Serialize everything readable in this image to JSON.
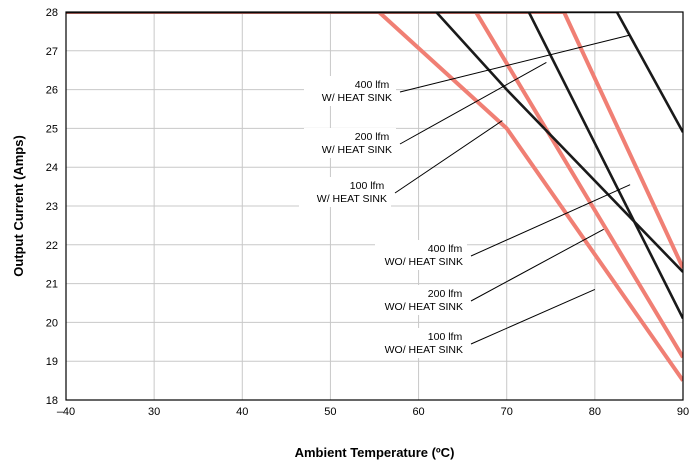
{
  "chart_data": {
    "type": "line",
    "xlabel": "Ambient Temperature (ºC)",
    "ylabel": "Output Current (Amps)",
    "x_ticks": [
      "–40",
      "30",
      "40",
      "50",
      "60",
      "70",
      "80",
      "90"
    ],
    "y_ticks": [
      "18",
      "19",
      "20",
      "21",
      "22",
      "23",
      "24",
      "25",
      "26",
      "27",
      "28"
    ],
    "x_ticks_numeric": [
      20,
      30,
      40,
      50,
      60,
      70,
      80,
      90
    ],
    "xlim": [
      20,
      90
    ],
    "ylim": [
      18,
      28
    ],
    "grid": true,
    "series": [
      {
        "name": "400 lfm W/ HEAT SINK",
        "color": "#1a1a1a",
        "x": [
          20,
          82.5,
          90
        ],
        "y": [
          28,
          28,
          24.9
        ]
      },
      {
        "name": "200 lfm W/ HEAT SINK",
        "color": "#1a1a1a",
        "x": [
          20,
          72.5,
          90
        ],
        "y": [
          28,
          28,
          20.1
        ]
      },
      {
        "name": "100 lfm W/ HEAT SINK",
        "color": "#1a1a1a",
        "x": [
          20,
          62,
          70,
          90
        ],
        "y": [
          28,
          28,
          26,
          21.3
        ]
      },
      {
        "name": "400 lfm WO/ HEAT SINK",
        "color": "#f07f74",
        "x": [
          20,
          76.5,
          90
        ],
        "y": [
          28,
          28,
          21.4
        ]
      },
      {
        "name": "200 lfm WO/ HEAT SINK",
        "color": "#f07f74",
        "x": [
          20,
          66.5,
          90
        ],
        "y": [
          28,
          28,
          19.1
        ]
      },
      {
        "name": "100 lfm WO/ HEAT SINK",
        "color": "#f07f74",
        "x": [
          20,
          55.5,
          70,
          90
        ],
        "y": [
          28,
          28,
          25,
          18.5
        ]
      }
    ],
    "annotations": [
      {
        "lines": [
          "400 lfm",
          "W/ HEAT SINK"
        ],
        "target": [
          83.9,
          27.4
        ]
      },
      {
        "lines": [
          "200 lfm",
          "W/ HEAT SINK"
        ],
        "target": [
          74.5,
          26.7
        ]
      },
      {
        "lines": [
          "100 lfm",
          "W/ HEAT SINK"
        ],
        "target": [
          69.5,
          25.2
        ]
      },
      {
        "lines": [
          "400 lfm",
          "WO/ HEAT SINK"
        ],
        "target": [
          84.0,
          23.55
        ]
      },
      {
        "lines": [
          "200 lfm",
          "WO/ HEAT SINK"
        ],
        "target": [
          81.0,
          22.4
        ]
      },
      {
        "lines": [
          "100 lfm",
          "WO/ HEAT SINK"
        ],
        "target": [
          80.0,
          20.85
        ]
      }
    ]
  }
}
